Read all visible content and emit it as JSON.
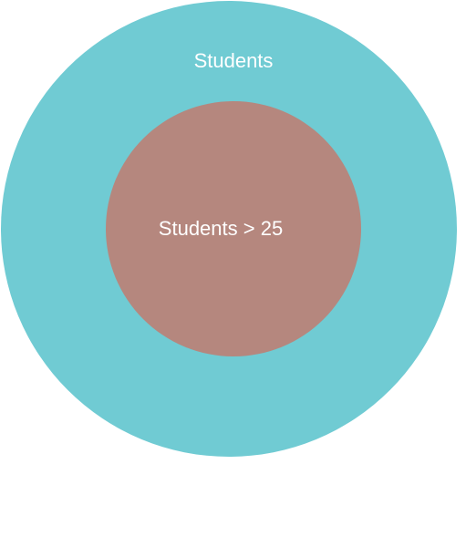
{
  "diagram": {
    "outer": {
      "label": "Students",
      "color": "#70cbd3"
    },
    "inner": {
      "label": "Students > 25",
      "color": "#b5877e"
    },
    "label_color": "#ffffff"
  }
}
